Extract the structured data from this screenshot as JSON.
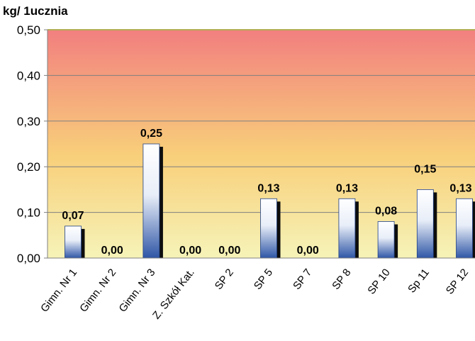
{
  "chart_data": {
    "type": "bar",
    "ylabel": "kg/ 1ucznia",
    "categories": [
      "Gimn. Nr 1",
      "Gimn. Nr 2",
      "Gimn. Nr 3",
      "Z. Szkół Kat.",
      "SP 2",
      "SP 5",
      "SP 7",
      "SP 8",
      "SP 10",
      "Sp 11",
      "SP 12"
    ],
    "values": [
      0.07,
      0.0,
      0.25,
      0.0,
      0.0,
      0.13,
      0.0,
      0.13,
      0.08,
      0.15,
      0.13
    ],
    "data_labels": [
      "0,07",
      "0,00",
      "0,25",
      "0,00",
      "0,00",
      "0,13",
      "0,00",
      "0,13",
      "0,08",
      "0,15",
      "0,13"
    ],
    "yticks": [
      0.0,
      0.1,
      0.2,
      0.3,
      0.4,
      0.5
    ],
    "ytick_labels": [
      "0,00",
      "0,10",
      "0,20",
      "0,30",
      "0,40",
      "0,50"
    ],
    "ylim": [
      0,
      0.5
    ],
    "grid": true,
    "legend": "none",
    "colors": {
      "background_top": "#f27f7f",
      "background_mid": "#f8cf7a",
      "background_bottom": "#f6f3b8",
      "bar_top": "#ffffff",
      "bar_bottom": "#2f56a6",
      "bar_shadow": "#0d0d0d",
      "gridline": "#808080"
    }
  }
}
